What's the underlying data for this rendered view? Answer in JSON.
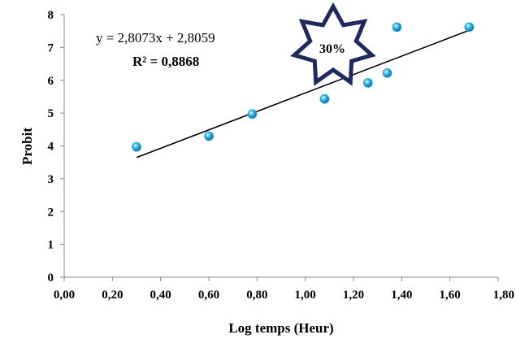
{
  "chart_data": {
    "type": "scatter",
    "xlabel": "Log temps (Heur)",
    "ylabel": "Probit",
    "xlim": [
      0,
      1.8
    ],
    "ylim": [
      0,
      8
    ],
    "x_ticks": [
      "0,00",
      "0,20",
      "0,40",
      "0,60",
      "0,80",
      "1,00",
      "1,20",
      "1,40",
      "1,60",
      "1,80"
    ],
    "y_ticks": [
      "0",
      "1",
      "2",
      "3",
      "4",
      "5",
      "6",
      "7",
      "8"
    ],
    "grid": false,
    "points": [
      {
        "x": 0.3,
        "y": 3.97
      },
      {
        "x": 0.6,
        "y": 4.3
      },
      {
        "x": 0.78,
        "y": 4.97
      },
      {
        "x": 1.08,
        "y": 5.43
      },
      {
        "x": 1.26,
        "y": 5.92
      },
      {
        "x": 1.34,
        "y": 6.22
      },
      {
        "x": 1.38,
        "y": 7.62
      },
      {
        "x": 1.68,
        "y": 7.62
      }
    ],
    "trendline": {
      "slope": 2.8073,
      "intercept": 2.8059,
      "x_range": [
        0.3,
        1.68
      ],
      "equation_label": "y = 2,8073x + 2,8059",
      "r2_label": "R² = 0,8868"
    },
    "annotation": "30%",
    "marker_color": "#29A6D9",
    "line_color": "#000000",
    "badge_border_color": "#1F2A5C"
  }
}
